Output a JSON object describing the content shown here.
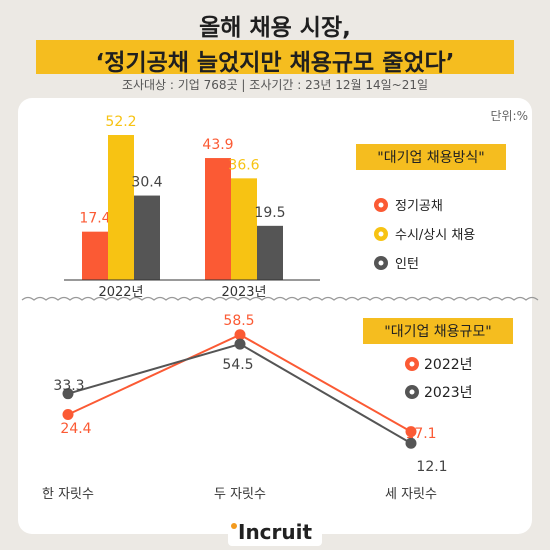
{
  "header": {
    "title_line1": "올해 채용 시장,",
    "title_line2": "‘정기공채 늘었지만 채용규모 줄었다’",
    "survey_info": "조사대상 : 기업 768곳 | 조사기간 : 23년 12월 14일~21일"
  },
  "unit_label": "단위:%",
  "colors": {
    "orange": "#fb5a34",
    "yellow": "#f7c313",
    "gray": "#555555",
    "highlight": "#f5bd1f"
  },
  "chart_data": [
    {
      "type": "bar",
      "title": "\"대기업 채용방식\"",
      "categories": [
        "2022년",
        "2023년"
      ],
      "series": [
        {
          "name": "정기공채",
          "values": [
            17.4,
            43.9
          ]
        },
        {
          "name": "수시/상시 채용",
          "values": [
            52.2,
            36.6
          ]
        },
        {
          "name": "인턴",
          "values": [
            30.4,
            19.5
          ]
        }
      ],
      "ylim": [
        0,
        60
      ],
      "legend": "right"
    },
    {
      "type": "line",
      "title": "\"대기업 채용규모\"",
      "categories": [
        "한 자릿수",
        "두 자릿수",
        "세 자릿수"
      ],
      "series": [
        {
          "name": "2022년",
          "values": [
            24.4,
            58.5,
            17.1
          ]
        },
        {
          "name": "2023년",
          "values": [
            33.3,
            54.5,
            12.1
          ]
        }
      ],
      "ylim": [
        0,
        70
      ],
      "legend": "right"
    }
  ],
  "logo": {
    "text": "Incruit"
  }
}
